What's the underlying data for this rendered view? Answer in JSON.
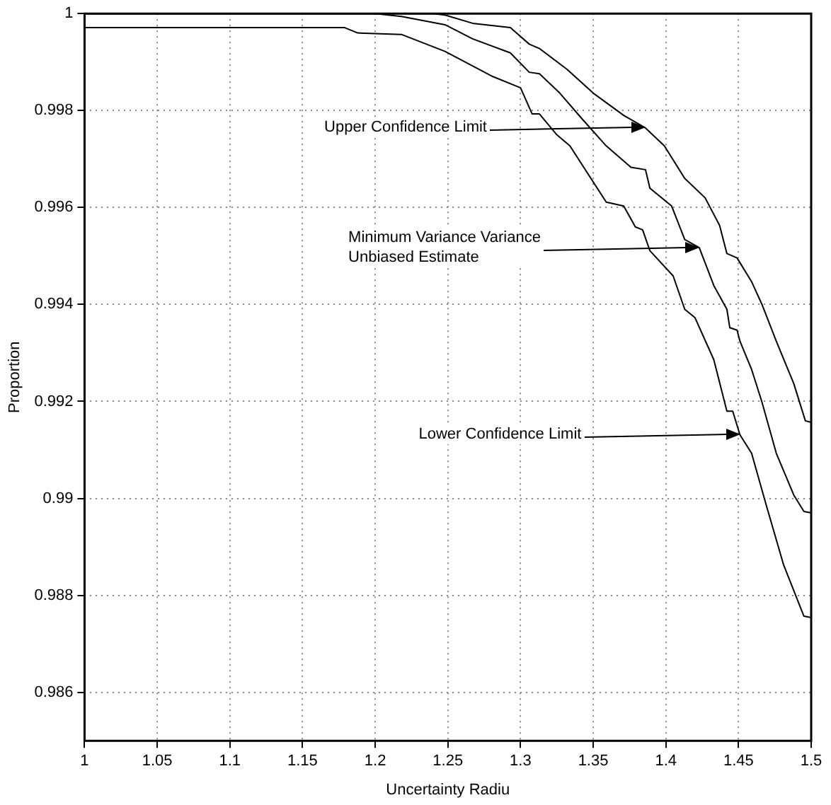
{
  "chart_data": {
    "type": "line",
    "xlabel": "Uncertainty Radiu",
    "ylabel": "Proportion",
    "xlim": [
      1,
      1.5
    ],
    "xticks": [
      1,
      1.05,
      1.1,
      1.15,
      1.2,
      1.25,
      1.3,
      1.35,
      1.4,
      1.45,
      1.5
    ],
    "ylim": [
      0.985,
      1
    ],
    "yticks": [
      0.986,
      0.988,
      0.99,
      0.992,
      0.994,
      0.996,
      0.998,
      1
    ],
    "grid": true,
    "legend": false,
    "marker": "none",
    "line_style": "solid",
    "series": [
      {
        "color": "#000000",
        "x": [
          1,
          1.24,
          1.248,
          1.267,
          1.293,
          1.306,
          1.313,
          1.332,
          1.35,
          1.371,
          1.386,
          1.399,
          1.413,
          1.427,
          1.437,
          1.442,
          1.449,
          1.459,
          1.466,
          1.476,
          1.488,
          1.496,
          1.5
        ],
        "values": [
          1,
          1,
          0.99997,
          0.9998,
          0.99971,
          0.99937,
          0.99928,
          0.99885,
          0.99836,
          0.9979,
          0.99764,
          0.99727,
          0.9966,
          0.9962,
          0.99563,
          0.99505,
          0.99496,
          0.99447,
          0.99401,
          0.99324,
          0.99237,
          0.9916,
          0.99157
        ]
      },
      {
        "color": "#000000",
        "x": [
          1,
          1.2,
          1.218,
          1.248,
          1.267,
          1.293,
          1.306,
          1.313,
          1.327,
          1.342,
          1.359,
          1.376,
          1.386,
          1.389,
          1.404,
          1.413,
          1.423,
          1.433,
          1.442,
          1.444,
          1.449,
          1.451,
          1.459,
          1.466,
          1.476,
          1.488,
          1.495,
          1.5
        ],
        "values": [
          1,
          1,
          0.99994,
          0.99977,
          0.99948,
          0.99919,
          0.99879,
          0.99876,
          0.99836,
          0.99784,
          0.99727,
          0.99683,
          0.99678,
          0.9964,
          0.99603,
          0.99534,
          0.99517,
          0.99439,
          0.9939,
          0.99352,
          0.99347,
          0.99324,
          0.99266,
          0.992,
          0.99093,
          0.99007,
          0.98973,
          0.9897
        ]
      },
      {
        "color": "#000000",
        "x": [
          1,
          1.179,
          1.188,
          1.218,
          1.248,
          1.281,
          1.3,
          1.308,
          1.313,
          1.325,
          1.334,
          1.359,
          1.371,
          1.379,
          1.384,
          1.389,
          1.405,
          1.413,
          1.42,
          1.433,
          1.442,
          1.446,
          1.451,
          1.459,
          1.469,
          1.481,
          1.495,
          1.5
        ],
        "values": [
          0.99971,
          0.99971,
          0.9996,
          0.99957,
          0.99922,
          0.9987,
          0.99847,
          0.99793,
          0.99793,
          0.9975,
          0.99727,
          0.99611,
          0.99603,
          0.9956,
          0.99554,
          0.99511,
          0.99459,
          0.9939,
          0.99373,
          0.99286,
          0.9918,
          0.9918,
          0.99131,
          0.99093,
          0.98987,
          0.98863,
          0.98757,
          0.98754
        ]
      }
    ],
    "annotations": [
      {
        "text": "Upper Confidence Limit",
        "x": 1.386,
        "y": 0.99764
      },
      {
        "text": "Minimum Variance Variance\n Unbiased Estimate",
        "x": 1.423,
        "y": 0.99517
      },
      {
        "text": "Lower Confidence Limit",
        "x": 1.451,
        "y": 0.99131
      }
    ]
  }
}
